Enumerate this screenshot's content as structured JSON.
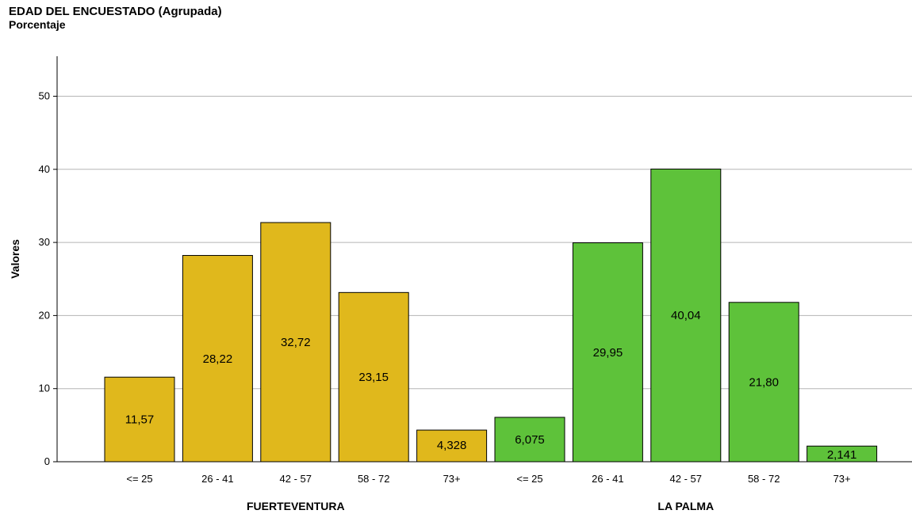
{
  "chart_data": {
    "type": "bar",
    "title": "EDAD DEL ENCUESTADO (Agrupada)",
    "subtitle": "Porcentaje",
    "ylabel": "Valores",
    "ylim": [
      0,
      55
    ],
    "yticks": [
      0,
      10,
      20,
      30,
      40,
      50
    ],
    "grid": true,
    "groups": [
      {
        "name": "FUERTEVENTURA",
        "color": "#E0B81C",
        "categories": [
          "<= 25",
          "26 - 41",
          "42 - 57",
          "58 - 72",
          "73+"
        ],
        "values": [
          11.57,
          28.22,
          32.72,
          23.15,
          4.328
        ],
        "labels": [
          "11,57",
          "28,22",
          "32,72",
          "23,15",
          "4,328"
        ]
      },
      {
        "name": "LA PALMA",
        "color": "#5EC23A",
        "categories": [
          "<= 25",
          "26 - 41",
          "42 - 57",
          "58 - 72",
          "73+"
        ],
        "values": [
          6.075,
          29.95,
          40.04,
          21.8,
          2.141
        ],
        "labels": [
          "6,075",
          "29,95",
          "40,04",
          "21,80",
          "2,141"
        ]
      }
    ]
  }
}
